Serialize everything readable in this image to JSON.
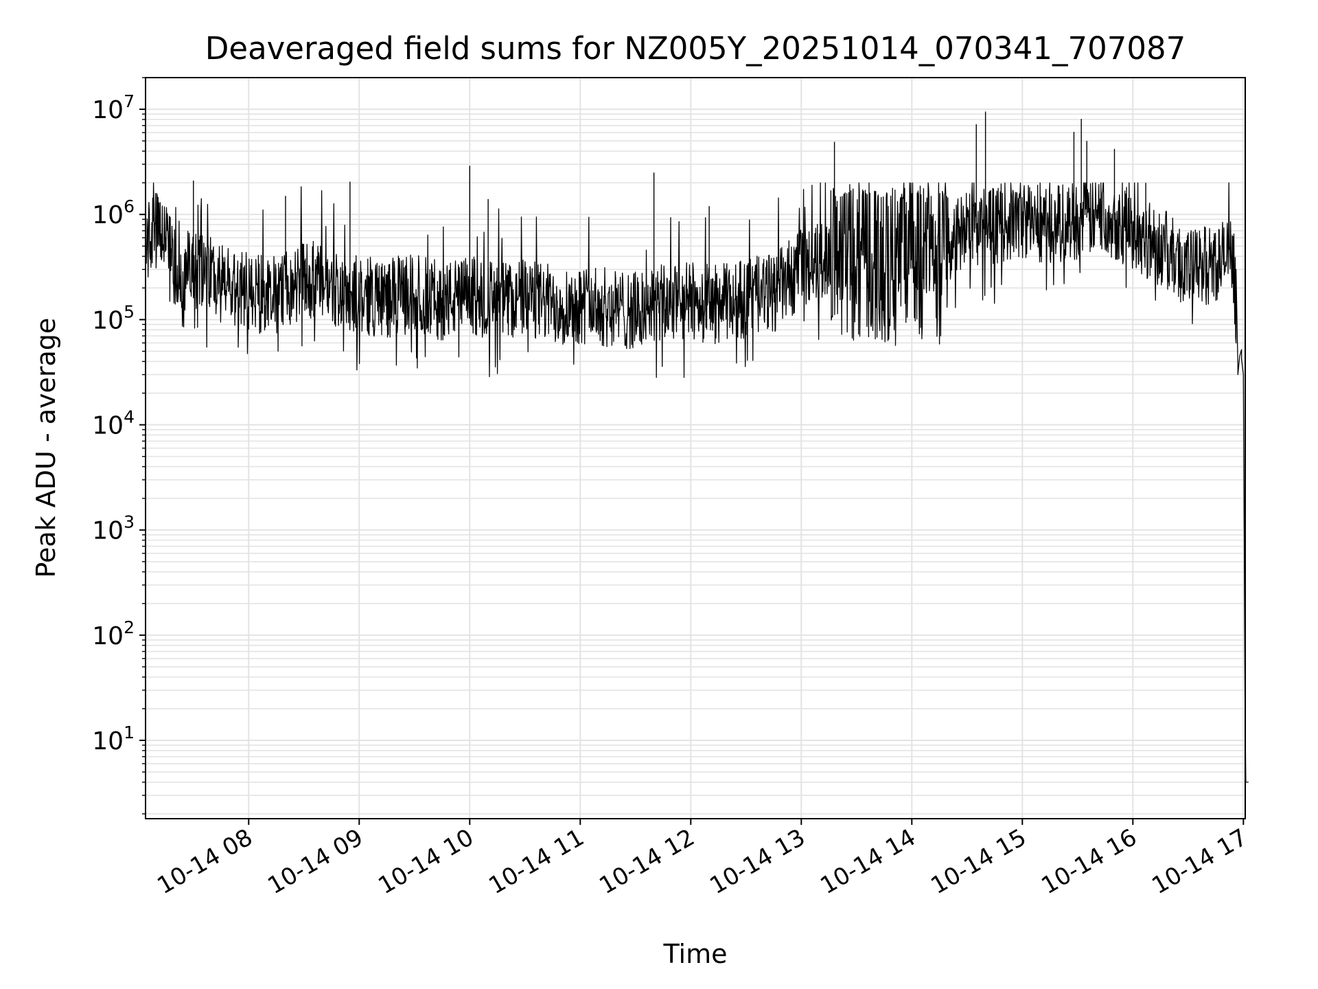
{
  "chart_data": {
    "type": "line",
    "title": "Deaveraged field sums for NZ005Y_20251014_070341_707087",
    "xlabel": "Time",
    "ylabel": "Peak ADU - average",
    "yscale": "log",
    "ylim": [
      1.8,
      20000000
    ],
    "xlim": [
      "2025-10-14 07:04",
      "2025-10-14 17:01"
    ],
    "grid": "major and minor",
    "line_color": "#000000",
    "x_ticks": [
      "2025-10-14 08:00",
      "2025-10-14 09:00",
      "2025-10-14 10:00",
      "2025-10-14 11:00",
      "2025-10-14 12:00",
      "2025-10-14 13:00",
      "2025-10-14 14:00",
      "2025-10-14 15:00",
      "2025-10-14 16:00",
      "2025-10-14 17:00"
    ],
    "x_tick_labels": [
      "10-14 08",
      "10-14 09",
      "10-14 10",
      "10-14 11",
      "10-14 12",
      "10-14 13",
      "10-14 14",
      "10-14 15",
      "10-14 16",
      "10-14 17"
    ],
    "y_ticks": [
      10,
      100,
      1000,
      10000,
      100000,
      1000000,
      10000000
    ],
    "y_tick_labels": [
      {
        "base": "10",
        "exp": "1"
      },
      {
        "base": "10",
        "exp": "2"
      },
      {
        "base": "10",
        "exp": "3"
      },
      {
        "base": "10",
        "exp": "4"
      },
      {
        "base": "10",
        "exp": "5"
      },
      {
        "base": "10",
        "exp": "6"
      },
      {
        "base": "10",
        "exp": "7"
      }
    ],
    "series": [
      {
        "x": [
          "2025-10-14 07:04",
          "2025-10-14 07:08",
          "2025-10-14 07:12",
          "2025-10-14 07:16",
          "2025-10-14 07:20",
          "2025-10-14 07:24",
          "2025-10-14 07:28",
          "2025-10-14 07:32",
          "2025-10-14 07:40",
          "2025-10-14 07:50",
          "2025-10-14 08:00",
          "2025-10-14 08:15",
          "2025-10-14 08:30",
          "2025-10-14 08:45",
          "2025-10-14 09:00",
          "2025-10-14 09:15",
          "2025-10-14 09:30",
          "2025-10-14 09:45",
          "2025-10-14 10:00",
          "2025-10-14 10:15",
          "2025-10-14 10:30",
          "2025-10-14 10:45",
          "2025-10-14 11:00",
          "2025-10-14 11:15",
          "2025-10-14 11:30",
          "2025-10-14 11:45",
          "2025-10-14 12:00",
          "2025-10-14 12:15",
          "2025-10-14 12:30",
          "2025-10-14 12:45",
          "2025-10-14 13:00",
          "2025-10-14 13:15",
          "2025-10-14 13:30",
          "2025-10-14 13:45",
          "2025-10-14 14:00",
          "2025-10-14 14:15",
          "2025-10-14 14:30",
          "2025-10-14 14:45",
          "2025-10-14 15:00",
          "2025-10-14 15:15",
          "2025-10-14 15:30",
          "2025-10-14 15:45",
          "2025-10-14 16:00",
          "2025-10-14 16:15",
          "2025-10-14 16:30",
          "2025-10-14 16:45",
          "2025-10-14 16:52",
          "2025-10-14 16:55",
          "2025-10-14 16:57",
          "2025-10-14 16:59",
          "2025-10-14 17:00",
          "2025-10-14 17:01"
        ],
        "y": [
          500000,
          700000,
          650000,
          600000,
          300000,
          180000,
          350000,
          300000,
          250000,
          200000,
          180000,
          170000,
          250000,
          200000,
          170000,
          160000,
          180000,
          150000,
          170000,
          150000,
          160000,
          140000,
          140000,
          130000,
          120000,
          140000,
          150000,
          140000,
          160000,
          180000,
          300000,
          400000,
          350000,
          300000,
          600000,
          500000,
          700000,
          800000,
          900000,
          800000,
          900000,
          1000000,
          700000,
          500000,
          300000,
          350000,
          400000,
          300000,
          35000,
          50000,
          40000,
          4
        ]
      },
      {
        "x": [
          "2025-10-14 07:30",
          "2025-10-14 08:20",
          "2025-10-14 08:55",
          "2025-10-14 10:00",
          "2025-10-14 10:10",
          "2025-10-14 11:40",
          "2025-10-14 12:10",
          "2025-10-14 13:18",
          "2025-10-14 14:35",
          "2025-10-14 14:40",
          "2025-10-14 15:28",
          "2025-10-14 15:32",
          "2025-10-14 15:35",
          "2025-10-14 15:50",
          "2025-10-14 16:07"
        ],
        "y": [
          2100000,
          1500000,
          2050000,
          2900000,
          1400000,
          2500000,
          1200000,
          4900000,
          7200000,
          9500000,
          6100000,
          8100000,
          5000000,
          4200000,
          2000000
        ]
      }
    ]
  }
}
